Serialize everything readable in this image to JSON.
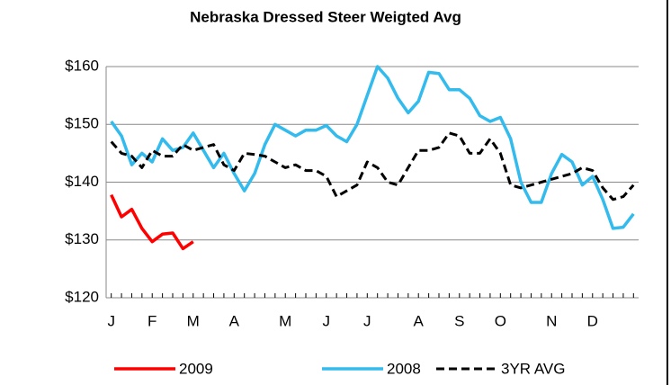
{
  "chart_data": {
    "type": "line",
    "title": "Nebraska Dressed Steer Weigted Avg",
    "x": [
      1,
      2,
      3,
      4,
      5,
      6,
      7,
      8,
      9,
      10,
      11,
      12,
      13,
      14,
      15,
      16,
      17,
      18,
      19,
      20,
      21,
      22,
      23,
      24,
      25,
      26,
      27,
      28,
      29,
      30,
      31,
      32,
      33,
      34,
      35,
      36,
      37,
      38,
      39,
      40,
      41,
      42,
      43,
      44,
      45,
      46,
      47,
      48,
      49,
      50,
      51,
      52
    ],
    "xlim": [
      0.5,
      52.5
    ],
    "xticks": [
      {
        "value": 1,
        "label": "J"
      },
      {
        "value": 5,
        "label": "F"
      },
      {
        "value": 9,
        "label": "M"
      },
      {
        "value": 13,
        "label": "A"
      },
      {
        "value": 18,
        "label": "M"
      },
      {
        "value": 22,
        "label": "J"
      },
      {
        "value": 26,
        "label": "J"
      },
      {
        "value": 31,
        "label": "A"
      },
      {
        "value": 35,
        "label": "S"
      },
      {
        "value": 39,
        "label": "O"
      },
      {
        "value": 44,
        "label": "N"
      },
      {
        "value": 48,
        "label": "D"
      }
    ],
    "ylim": [
      120,
      160
    ],
    "yticks": [
      {
        "value": 120,
        "label": "$120"
      },
      {
        "value": 130,
        "label": "$130"
      },
      {
        "value": 140,
        "label": "$140"
      },
      {
        "value": 150,
        "label": "$150"
      },
      {
        "value": 160,
        "label": "$160"
      }
    ],
    "grid": true,
    "series": [
      {
        "name": "2009",
        "color": "#ff0000",
        "dash": false,
        "values": [
          137.8,
          134,
          135.3,
          132,
          129.7,
          131,
          131.2,
          128.5,
          129.7,
          null,
          null,
          null,
          null,
          null,
          null,
          null,
          null,
          null,
          null,
          null,
          null,
          null,
          null,
          null,
          null,
          null,
          null,
          null,
          null,
          null,
          null,
          null,
          null,
          null,
          null,
          null,
          null,
          null,
          null,
          null,
          null,
          null,
          null,
          null,
          null,
          null,
          null,
          null,
          null,
          null,
          null,
          null
        ]
      },
      {
        "name": "2008",
        "color": "#33bbee",
        "dash": false,
        "values": [
          150.5,
          148,
          143,
          145,
          143.5,
          147.5,
          145.5,
          146,
          148.5,
          145.5,
          142.5,
          145,
          141.5,
          138.5,
          141.5,
          146.5,
          150,
          149,
          148,
          149,
          149,
          149.8,
          148,
          147,
          150,
          155,
          160,
          158,
          154.5,
          152,
          154,
          159,
          158.8,
          156,
          156,
          154.5,
          151.5,
          150.5,
          151.2,
          147.5,
          140,
          136.5,
          136.5,
          141.5,
          144.8,
          143.5,
          139.5,
          141,
          137,
          132,
          132.2,
          134.5
        ]
      },
      {
        "name": "3YR AVG",
        "color": "#000000",
        "dash": true,
        "values": [
          147,
          145,
          144.5,
          142.5,
          145.5,
          144.5,
          144.5,
          146.5,
          145.5,
          146,
          146.5,
          143,
          142,
          145,
          144.8,
          144.5,
          143.5,
          142.5,
          143,
          142,
          142,
          141,
          137.5,
          138.5,
          139.5,
          143.5,
          142.5,
          140,
          139.5,
          142.5,
          145.5,
          145.5,
          146,
          148.5,
          148,
          145,
          145,
          147.5,
          145,
          139.5,
          139,
          139.5,
          140,
          140.5,
          141,
          141.5,
          142.5,
          142,
          139,
          137,
          137.5,
          139.5
        ]
      }
    ]
  }
}
